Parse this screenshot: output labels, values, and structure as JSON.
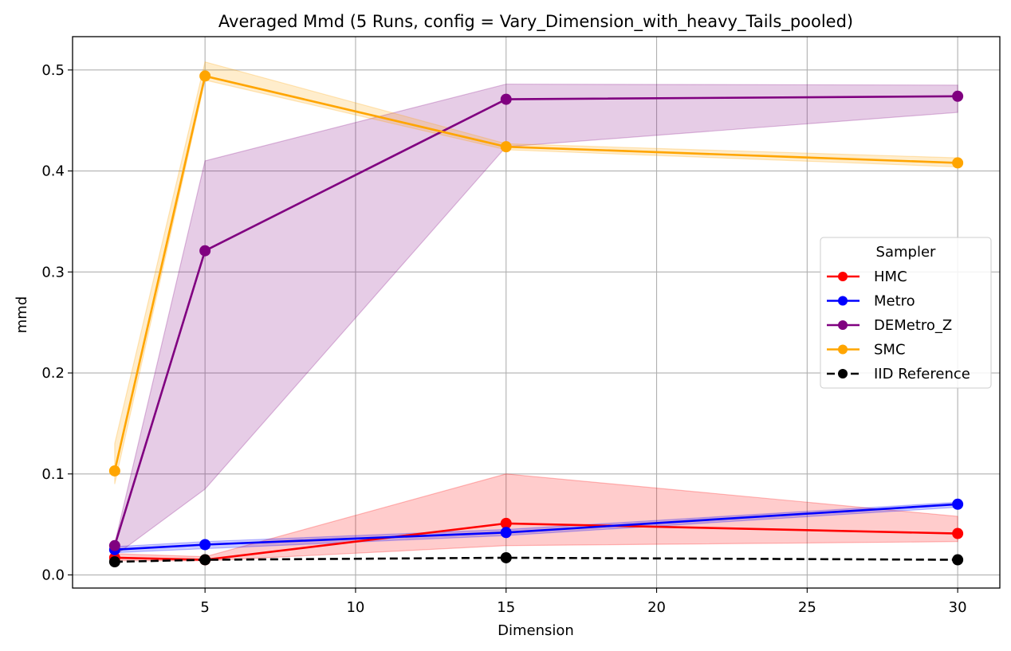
{
  "chart_data": {
    "type": "line",
    "title": "Averaged Mmd (5 Runs, config = Vary_Dimension_with_heavy_Tails_pooled)",
    "xlabel": "Dimension",
    "ylabel": "mmd",
    "xlim": [
      0.6,
      31.4
    ],
    "ylim": [
      -0.013,
      0.533
    ],
    "xticks": [
      5,
      10,
      15,
      20,
      25,
      30
    ],
    "yticks": [
      0.0,
      0.1,
      0.2,
      0.3,
      0.4,
      0.5
    ],
    "grid": true,
    "legend": {
      "title": "Sampler",
      "placement": "center-right"
    },
    "x": [
      2,
      5,
      15,
      30
    ],
    "series": [
      {
        "name": "HMC",
        "color": "#ff0000",
        "dashed": false,
        "values": [
          0.017,
          0.015,
          0.051,
          0.041
        ],
        "band_low": [
          0.014,
          0.014,
          0.029,
          0.033
        ],
        "band_high": [
          0.021,
          0.018,
          0.1,
          0.058
        ]
      },
      {
        "name": "Metro",
        "color": "#0000ff",
        "dashed": false,
        "values": [
          0.025,
          0.03,
          0.042,
          0.07
        ],
        "band_low": [
          0.022,
          0.026,
          0.039,
          0.067
        ],
        "band_high": [
          0.028,
          0.033,
          0.045,
          0.072
        ]
      },
      {
        "name": "DEMetro_Z",
        "color": "#800080",
        "dashed": false,
        "values": [
          0.029,
          0.321,
          0.471,
          0.474
        ],
        "band_low": [
          0.019,
          0.085,
          0.424,
          0.458
        ],
        "band_high": [
          0.031,
          0.41,
          0.486,
          0.485
        ]
      },
      {
        "name": "SMC",
        "color": "#ffa500",
        "dashed": false,
        "values": [
          0.103,
          0.494,
          0.424,
          0.408
        ],
        "band_low": [
          0.09,
          0.49,
          0.421,
          0.404
        ],
        "band_high": [
          0.13,
          0.508,
          0.427,
          0.413
        ]
      },
      {
        "name": "IID Reference",
        "color": "#000000",
        "dashed": true,
        "values": [
          0.013,
          0.015,
          0.017,
          0.015
        ]
      }
    ]
  }
}
